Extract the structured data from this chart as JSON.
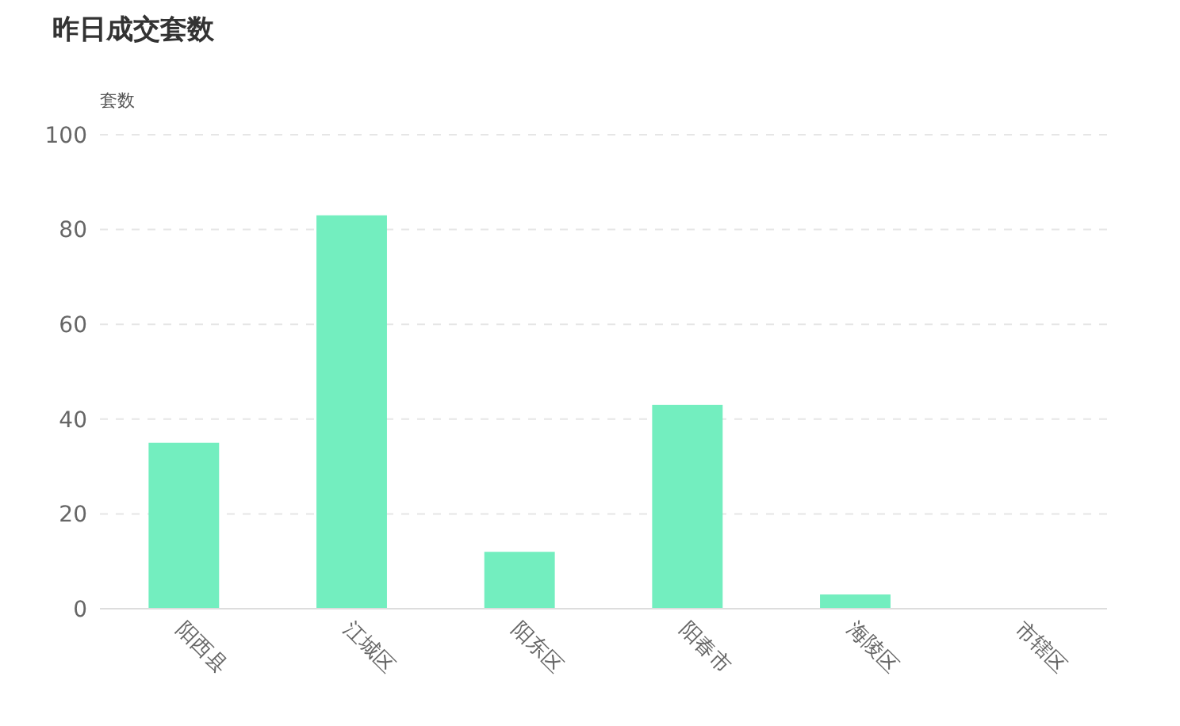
{
  "chart_data": {
    "type": "bar",
    "title": "昨日成交套数",
    "ylabel": "套数",
    "categories": [
      "阳西县",
      "江城区",
      "阳东区",
      "阳春市",
      "海陵区",
      "市辖区"
    ],
    "values": [
      35,
      83,
      12,
      43,
      3,
      0
    ],
    "color": "#73eebf",
    "ylim": [
      0,
      100
    ],
    "yticks": [
      0,
      20,
      40,
      60,
      80,
      100
    ],
    "grid": "y",
    "line_style": "dashed"
  }
}
